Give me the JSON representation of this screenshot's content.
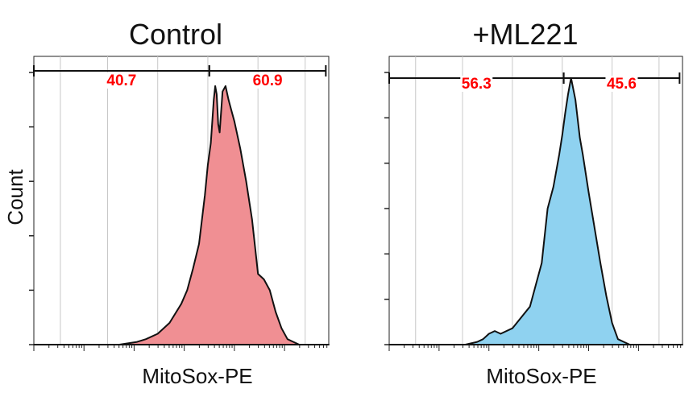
{
  "figure": {
    "y_axis_label": "Count"
  },
  "chart_data": [
    {
      "type": "area",
      "title": "Control",
      "xlabel": "MitoSox-PE",
      "ylabel": "Count",
      "x_scale": "log",
      "xlim": [
        0,
        1
      ],
      "ylim": [
        0,
        1
      ],
      "fill_color": "#f08f93",
      "line_color": "#111111",
      "label_color": "#ff0000",
      "grid": true,
      "x": [
        0.0,
        0.29,
        0.35,
        0.38,
        0.42,
        0.46,
        0.5,
        0.52,
        0.54,
        0.56,
        0.58,
        0.59,
        0.6,
        0.61,
        0.615,
        0.62,
        0.625,
        0.63,
        0.64,
        0.65,
        0.66,
        0.67,
        0.68,
        0.7,
        0.72,
        0.74,
        0.75,
        0.76,
        0.78,
        0.8,
        0.82,
        0.84,
        0.86,
        0.88,
        0.9,
        1.0
      ],
      "y": [
        0.0,
        0.0,
        0.01,
        0.02,
        0.04,
        0.08,
        0.15,
        0.2,
        0.28,
        0.37,
        0.55,
        0.66,
        0.74,
        0.9,
        0.95,
        0.92,
        0.81,
        0.78,
        0.93,
        0.95,
        0.9,
        0.86,
        0.82,
        0.72,
        0.6,
        0.46,
        0.36,
        0.26,
        0.24,
        0.2,
        0.12,
        0.06,
        0.02,
        0.01,
        0.0,
        0.0
      ],
      "gates": [
        {
          "label": "40.7",
          "from": 0.0,
          "to": 0.595
        },
        {
          "label": "60.9",
          "from": 0.595,
          "to": 0.99
        }
      ]
    },
    {
      "type": "area",
      "title": "+ML221",
      "xlabel": "MitoSox-PE",
      "ylabel": "",
      "x_scale": "log",
      "xlim": [
        0,
        1
      ],
      "ylim": [
        0,
        1
      ],
      "fill_color": "#8fd2f0",
      "line_color": "#111111",
      "label_color": "#ff0000",
      "grid": true,
      "x": [
        0.0,
        0.26,
        0.3,
        0.32,
        0.34,
        0.36,
        0.38,
        0.42,
        0.45,
        0.48,
        0.5,
        0.52,
        0.54,
        0.56,
        0.58,
        0.59,
        0.6,
        0.61,
        0.62,
        0.635,
        0.65,
        0.66,
        0.68,
        0.7,
        0.72,
        0.74,
        0.76,
        0.78,
        0.8,
        0.82,
        0.84,
        1.0
      ],
      "y": [
        0.0,
        0.0,
        0.01,
        0.02,
        0.04,
        0.05,
        0.04,
        0.06,
        0.1,
        0.14,
        0.22,
        0.3,
        0.5,
        0.58,
        0.7,
        0.77,
        0.85,
        0.92,
        0.98,
        0.9,
        0.76,
        0.7,
        0.56,
        0.43,
        0.3,
        0.18,
        0.08,
        0.02,
        0.01,
        0.0,
        0.0,
        0.0
      ],
      "gates": [
        {
          "label": "56.3",
          "from": 0.0,
          "to": 0.595
        },
        {
          "label": "45.6",
          "from": 0.595,
          "to": 0.99
        }
      ]
    }
  ]
}
